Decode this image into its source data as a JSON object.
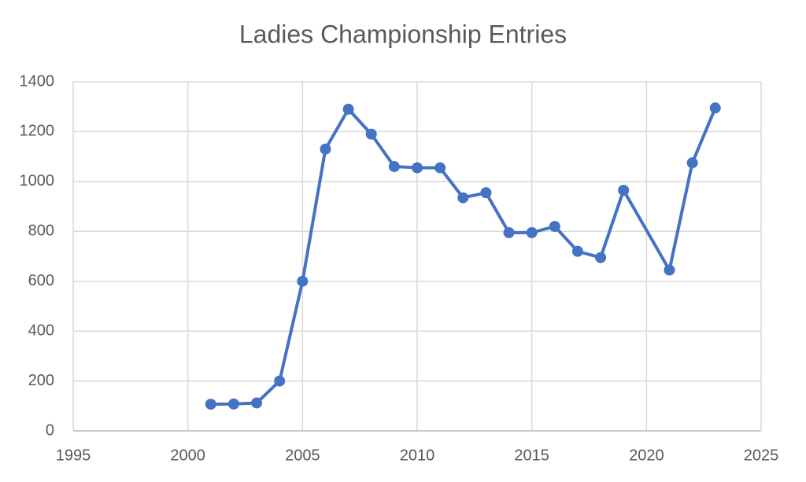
{
  "chart_data": {
    "type": "line",
    "title": "Ladies Championship Entries",
    "x": [
      2001,
      2002,
      2003,
      2004,
      2005,
      2006,
      2007,
      2008,
      2009,
      2010,
      2011,
      2012,
      2013,
      2014,
      2015,
      2016,
      2017,
      2018,
      2019,
      2021,
      2022,
      2023
    ],
    "series": [
      {
        "name": "Entries",
        "color": "#4472c4",
        "values": [
          107,
          108,
          112,
          200,
          600,
          1130,
          1290,
          1190,
          1060,
          1055,
          1055,
          935,
          955,
          795,
          795,
          820,
          720,
          695,
          965,
          645,
          1075,
          1295
        ]
      }
    ],
    "xlim": [
      1995,
      2025
    ],
    "xticks": [
      1995,
      2000,
      2005,
      2010,
      2015,
      2020,
      2025
    ],
    "ylim": [
      0,
      1400
    ],
    "yticks": [
      0,
      200,
      400,
      600,
      800,
      1000,
      1200,
      1400
    ],
    "grid": true,
    "markers": true
  }
}
